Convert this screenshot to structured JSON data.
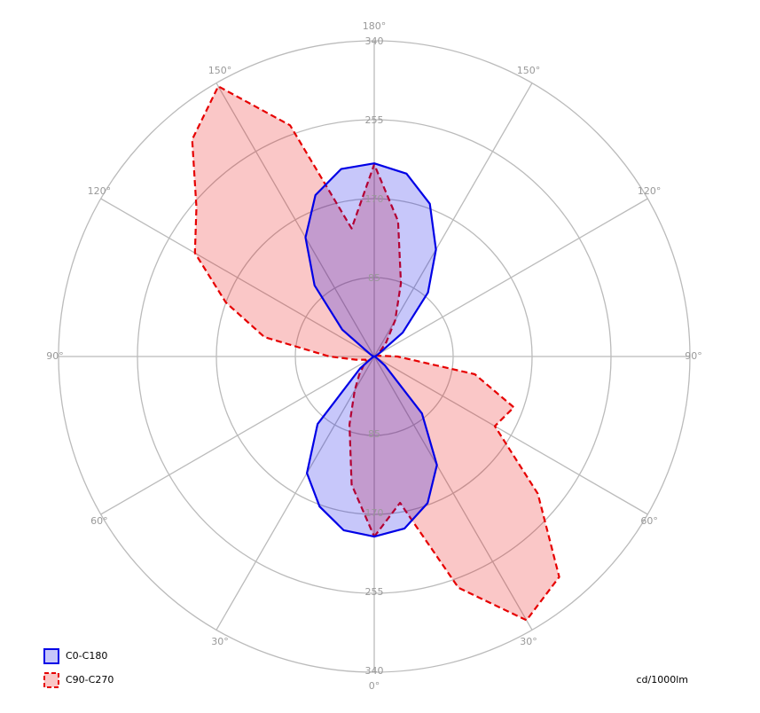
{
  "chart_data": {
    "type": "polar",
    "unit": "cd/1000lm",
    "rlim": [
      0,
      340
    ],
    "rticks": [
      85,
      170,
      255,
      340
    ],
    "angle_ticks": [
      {
        "value": 0,
        "label": "0°"
      },
      {
        "value": 30,
        "label": "30°"
      },
      {
        "value": 60,
        "label": "60°"
      },
      {
        "value": 90,
        "label": "90°"
      },
      {
        "value": 120,
        "label": "120°"
      },
      {
        "value": 150,
        "label": "150°"
      },
      {
        "value": 180,
        "label": "180°"
      },
      {
        "value": 210,
        "label": "150°"
      },
      {
        "value": 240,
        "label": "120°"
      },
      {
        "value": 270,
        "label": "90°"
      },
      {
        "value": 300,
        "label": "60°"
      },
      {
        "value": 330,
        "label": "30°"
      }
    ],
    "x": [
      0,
      10,
      20,
      30,
      40,
      50,
      60,
      70,
      80,
      90,
      100,
      110,
      120,
      130,
      140,
      150,
      160,
      170,
      180,
      190,
      200,
      210,
      220,
      230,
      240,
      250,
      260,
      270,
      280,
      290,
      300,
      310,
      320,
      330,
      340,
      350
    ],
    "legend": "bottom-left",
    "series": [
      {
        "name": "C0-C180",
        "color": "#0000e6",
        "dashed": false,
        "values": [
          194,
          188,
          168,
          135,
          80,
          15,
          3,
          1,
          0,
          0,
          0,
          2,
          5,
          40,
          90,
          133,
          175,
          200,
          208,
          205,
          185,
          148,
          100,
          45,
          5,
          2,
          0,
          0,
          0,
          1,
          3,
          20,
          95,
          145,
          172,
          190
        ]
      },
      {
        "name": "C90-C270",
        "color": "#e60000",
        "dashed": true,
        "values": [
          194,
          160,
          265,
          328,
          310,
          230,
          150,
          160,
          110,
          25,
          5,
          3,
          4,
          8,
          20,
          45,
          84,
          148,
          207,
          140,
          265,
          336,
          305,
          250,
          223,
          170,
          120,
          48,
          20,
          10,
          10,
          15,
          25,
          42,
          78,
          140
        ]
      }
    ]
  }
}
